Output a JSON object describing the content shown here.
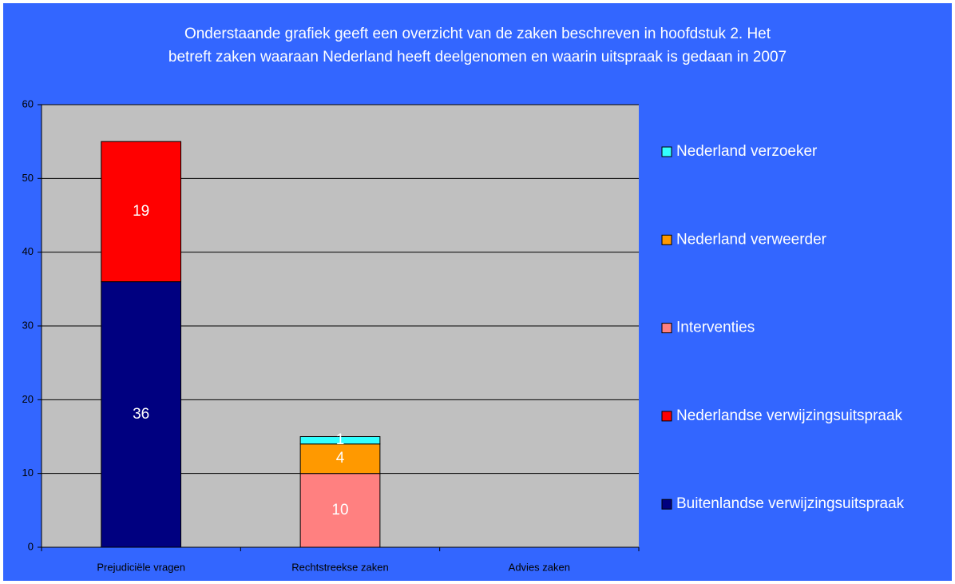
{
  "chart_data": {
    "type": "stacked_bar",
    "title": [
      "Onderstaande grafiek geeft een overzicht van de zaken beschreven in hoofdstuk 2. Het",
      "betreft zaken waaraan Nederland heeft deelgenomen en waarin uitspraak is gedaan in 2007"
    ],
    "categories": [
      "Prejudiciële vragen",
      "Rechtstreekse zaken",
      "Advies zaken"
    ],
    "series": [
      {
        "name": "Buitenlandse verwijzingsuitspraak",
        "color": "#000080",
        "values": [
          36,
          null,
          null
        ]
      },
      {
        "name": "Nederlandse verwijzingsuitspraak",
        "color": "#ff0000",
        "values": [
          19,
          null,
          null
        ]
      },
      {
        "name": "Interventies",
        "color": "#ff8080",
        "values": [
          null,
          10,
          null
        ]
      },
      {
        "name": "Nederland verweerder",
        "color": "#ff9900",
        "values": [
          null,
          4,
          null
        ]
      },
      {
        "name": "Nederland verzoeker",
        "color": "#33ffff",
        "values": [
          null,
          1,
          null
        ]
      }
    ],
    "ylim": [
      0,
      60
    ],
    "yticks": [
      0,
      10,
      20,
      30,
      40,
      50,
      60
    ],
    "grid": true,
    "legend": "right"
  }
}
